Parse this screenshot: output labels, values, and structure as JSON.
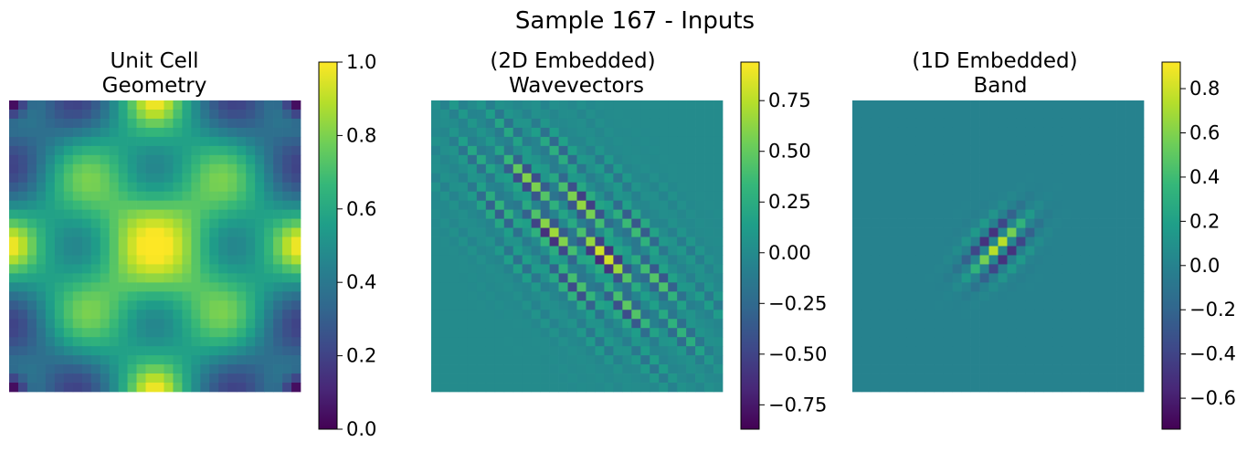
{
  "suptitle": "Sample 167 - Inputs",
  "colors": {
    "viridis": [
      "#440154",
      "#482878",
      "#3e4989",
      "#31688e",
      "#26828e",
      "#1f9e89",
      "#35b779",
      "#6ece58",
      "#b5de2b",
      "#fde725"
    ]
  },
  "chart_data": [
    {
      "type": "heatmap",
      "title_lines": [
        "Unit Cell",
        "Geometry"
      ],
      "grid": false,
      "axes_visible": false,
      "rows": 32,
      "cols": 32,
      "pattern": "unit-cell-geometry",
      "vmin": 0.0,
      "vmax": 1.0,
      "colormap": "viridis",
      "colorbar": {
        "ticks": [
          0.0,
          0.2,
          0.4,
          0.6,
          0.8,
          1.0
        ],
        "tick_labels": [
          "0.0",
          "0.2",
          "0.4",
          "0.6",
          "0.8",
          "1.0"
        ]
      }
    },
    {
      "type": "heatmap",
      "title_lines": [
        "(2D Embedded)",
        "Wavevectors"
      ],
      "grid": false,
      "axes_visible": false,
      "rows": 32,
      "cols": 32,
      "pattern": "diagonal-band-checkerboard",
      "vmin": -0.87,
      "vmax": 0.94,
      "colormap": "viridis",
      "colorbar": {
        "ticks": [
          -0.75,
          -0.5,
          -0.25,
          0.0,
          0.25,
          0.5,
          0.75
        ],
        "tick_labels": [
          "−0.75",
          "−0.50",
          "−0.25",
          "0.00",
          "0.25",
          "0.50",
          "0.75"
        ]
      }
    },
    {
      "type": "heatmap",
      "title_lines": [
        "(1D Embedded)",
        "Band"
      ],
      "grid": false,
      "axes_visible": false,
      "rows": 32,
      "cols": 32,
      "pattern": "central-oscillating-spot",
      "vmin": -0.74,
      "vmax": 0.92,
      "colormap": "viridis",
      "colorbar": {
        "ticks": [
          -0.6,
          -0.4,
          -0.2,
          0.0,
          0.2,
          0.4,
          0.6,
          0.8
        ],
        "tick_labels": [
          "−0.6",
          "−0.4",
          "−0.2",
          "0.0",
          "0.2",
          "0.4",
          "0.6",
          "0.8"
        ]
      }
    }
  ]
}
